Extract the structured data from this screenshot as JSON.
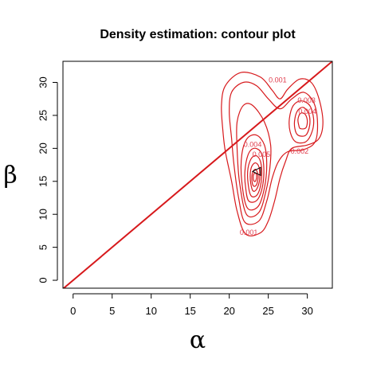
{
  "chart_data": {
    "type": "contour",
    "title": "Density estimation: contour plot",
    "xlabel": "α",
    "ylabel": "β",
    "xlim": [
      -1.3,
      33.2
    ],
    "ylim": [
      -1.2,
      33.2
    ],
    "x_ticks": [
      0,
      5,
      10,
      15,
      20,
      25,
      30
    ],
    "y_ticks": [
      0,
      5,
      10,
      15,
      20,
      25,
      30
    ],
    "line_color": "#d7191c",
    "label_color": "#e03c4c",
    "reference_line": {
      "slope": 1,
      "intercept": 0,
      "color": "#d7191c"
    },
    "mode_marker": {
      "x": 23.5,
      "y": 16.5,
      "symbol": "triangle"
    },
    "contour_labels": [
      {
        "text": "0.001",
        "x": 26.2,
        "y": 30.3
      },
      {
        "text": "0.003",
        "x": 29.9,
        "y": 27.2
      },
      {
        "text": "0.004",
        "x": 30.0,
        "y": 25.5
      },
      {
        "text": "0.004",
        "x": 23.0,
        "y": 20.5
      },
      {
        "text": "0.005",
        "x": 24.1,
        "y": 19.0
      },
      {
        "text": "0.002",
        "x": 29.0,
        "y": 19.5
      },
      {
        "text": "0.001",
        "x": 22.5,
        "y": 7.2
      }
    ],
    "contours": [
      {
        "level": 0.001,
        "points": [
          [
            22.1,
            7.0
          ],
          [
            24.0,
            7.2
          ],
          [
            25.0,
            9.0
          ],
          [
            25.8,
            12.0
          ],
          [
            26.5,
            15.5
          ],
          [
            27.2,
            18.0
          ],
          [
            28.0,
            20.0
          ],
          [
            30.0,
            20.5
          ],
          [
            31.5,
            21.5
          ],
          [
            32.0,
            24.0
          ],
          [
            31.5,
            27.5
          ],
          [
            30.5,
            30.0
          ],
          [
            29.0,
            30.5
          ],
          [
            27.5,
            29.0
          ],
          [
            26.5,
            27.5
          ],
          [
            25.5,
            28.8
          ],
          [
            24.0,
            30.8
          ],
          [
            21.5,
            31.5
          ],
          [
            19.5,
            29.5
          ],
          [
            19.0,
            26.5
          ],
          [
            19.2,
            22.5
          ],
          [
            19.5,
            19.5
          ],
          [
            20.3,
            15.0
          ],
          [
            21.0,
            10.5
          ],
          [
            22.1,
            7.0
          ]
        ]
      },
      {
        "level": 0.002,
        "points": [
          [
            22.0,
            8.8
          ],
          [
            23.8,
            9.0
          ],
          [
            24.8,
            12.0
          ],
          [
            25.5,
            15.5
          ],
          [
            26.3,
            18.0
          ],
          [
            27.5,
            19.5
          ],
          [
            29.5,
            19.8
          ],
          [
            31.0,
            21.0
          ],
          [
            31.3,
            24.0
          ],
          [
            30.8,
            27.0
          ],
          [
            29.5,
            28.5
          ],
          [
            28.0,
            27.5
          ],
          [
            26.5,
            26.0
          ],
          [
            25.0,
            27.5
          ],
          [
            23.5,
            29.5
          ],
          [
            21.8,
            30.0
          ],
          [
            20.3,
            28.5
          ],
          [
            20.0,
            25.5
          ],
          [
            20.3,
            21.5
          ],
          [
            20.6,
            17.5
          ],
          [
            21.2,
            12.5
          ],
          [
            22.0,
            8.8
          ]
        ]
      },
      {
        "level": 0.003,
        "points": [
          [
            22.2,
            10.0
          ],
          [
            23.8,
            10.3
          ],
          [
            24.7,
            13.5
          ],
          [
            25.2,
            17.0
          ],
          [
            25.3,
            20.5
          ],
          [
            24.5,
            24.0
          ],
          [
            23.0,
            26.5
          ],
          [
            21.8,
            26.5
          ],
          [
            21.0,
            24.0
          ],
          [
            21.0,
            20.0
          ],
          [
            21.3,
            15.0
          ],
          [
            22.2,
            10.0
          ]
        ]
      },
      {
        "level": 0.003,
        "points": [
          [
            28.5,
            21.0
          ],
          [
            29.8,
            21.0
          ],
          [
            30.6,
            22.5
          ],
          [
            30.8,
            24.5
          ],
          [
            30.3,
            26.5
          ],
          [
            29.2,
            27.2
          ],
          [
            28.2,
            26.5
          ],
          [
            27.7,
            24.5
          ],
          [
            27.8,
            22.5
          ],
          [
            28.5,
            21.0
          ]
        ]
      },
      {
        "level": 0.004,
        "points": [
          [
            22.3,
            11.0
          ],
          [
            23.7,
            11.2
          ],
          [
            24.5,
            14.0
          ],
          [
            24.8,
            17.5
          ],
          [
            24.5,
            20.5
          ],
          [
            23.5,
            22.0
          ],
          [
            22.3,
            21.5
          ],
          [
            21.6,
            19.0
          ],
          [
            21.6,
            15.0
          ],
          [
            22.3,
            11.0
          ]
        ]
      },
      {
        "level": 0.004,
        "points": [
          [
            28.8,
            22.0
          ],
          [
            29.8,
            22.0
          ],
          [
            30.3,
            23.5
          ],
          [
            30.2,
            25.2
          ],
          [
            29.5,
            26.2
          ],
          [
            28.8,
            25.8
          ],
          [
            28.4,
            24.5
          ],
          [
            28.4,
            23.0
          ],
          [
            28.8,
            22.0
          ]
        ]
      },
      {
        "level": 0.005,
        "points": [
          [
            22.5,
            12.0
          ],
          [
            23.6,
            12.2
          ],
          [
            24.3,
            14.5
          ],
          [
            24.4,
            17.5
          ],
          [
            24.0,
            19.5
          ],
          [
            23.1,
            20.0
          ],
          [
            22.4,
            19.0
          ],
          [
            22.0,
            16.5
          ],
          [
            22.1,
            14.0
          ],
          [
            22.5,
            12.0
          ]
        ]
      },
      {
        "level": 0.005,
        "points": [
          [
            29.1,
            23.0
          ],
          [
            29.8,
            23.1
          ],
          [
            30.0,
            24.2
          ],
          [
            29.7,
            25.2
          ],
          [
            29.1,
            25.3
          ],
          [
            28.8,
            24.4
          ],
          [
            28.9,
            23.5
          ],
          [
            29.1,
            23.0
          ]
        ]
      },
      {
        "level": 0.006,
        "points": [
          [
            22.8,
            12.8
          ],
          [
            23.6,
            13.0
          ],
          [
            24.1,
            15.0
          ],
          [
            24.1,
            17.5
          ],
          [
            23.6,
            18.8
          ],
          [
            22.9,
            18.6
          ],
          [
            22.4,
            17.0
          ],
          [
            22.4,
            14.8
          ],
          [
            22.8,
            12.8
          ]
        ]
      },
      {
        "level": 0.007,
        "points": [
          [
            23.0,
            13.6
          ],
          [
            23.5,
            13.8
          ],
          [
            23.9,
            15.3
          ],
          [
            23.8,
            17.2
          ],
          [
            23.3,
            17.8
          ],
          [
            22.8,
            17.0
          ],
          [
            22.7,
            15.2
          ],
          [
            23.0,
            13.6
          ]
        ]
      },
      {
        "level": 0.008,
        "points": [
          [
            23.1,
            14.3
          ],
          [
            23.5,
            14.5
          ],
          [
            23.7,
            15.8
          ],
          [
            23.4,
            16.8
          ],
          [
            23.0,
            16.4
          ],
          [
            22.9,
            15.2
          ],
          [
            23.1,
            14.3
          ]
        ]
      },
      {
        "level": 0.009,
        "points": [
          [
            23.2,
            15.0
          ],
          [
            23.4,
            15.1
          ],
          [
            23.5,
            15.9
          ],
          [
            23.3,
            16.3
          ],
          [
            23.1,
            15.9
          ],
          [
            23.1,
            15.3
          ],
          [
            23.2,
            15.0
          ]
        ]
      }
    ]
  }
}
